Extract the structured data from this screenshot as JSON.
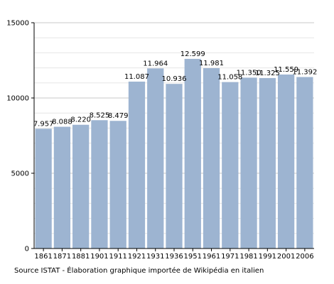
{
  "chart_data": {
    "type": "bar",
    "categories": [
      "1861",
      "1871",
      "1881",
      "1901",
      "1911",
      "1921",
      "1931",
      "1936",
      "1951",
      "1961",
      "1971",
      "1981",
      "1991",
      "2001",
      "2006"
    ],
    "values": [
      7957,
      8088,
      8220,
      8525,
      8479,
      11087,
      11964,
      10936,
      12599,
      11981,
      11058,
      11350,
      11325,
      11559,
      11392
    ],
    "value_labels": [
      "7.957",
      "8.088",
      "8.220",
      "8.525",
      "8.479",
      "11.087",
      "11.964",
      "10.936",
      "12.599",
      "11.981",
      "11.058",
      "11.350",
      "11.325",
      "11.559",
      "11.392"
    ],
    "yticks": [
      0,
      5000,
      10000,
      15000
    ],
    "ytick_labels": [
      "0",
      "5000",
      "10000",
      "15000"
    ],
    "ylim": [
      0,
      15000
    ],
    "bar_color": "#9db4d1",
    "grid": true,
    "title": "",
    "xlabel": "",
    "ylabel": ""
  },
  "source_note": "Source ISTAT - Élaboration graphique importée de Wikipédia en italien"
}
